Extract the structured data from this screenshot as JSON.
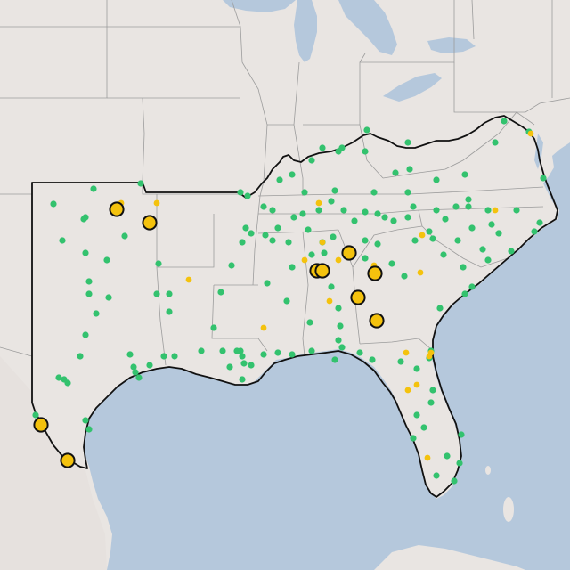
{
  "map": {
    "colors": {
      "water": "#b5c8dc",
      "land": "#e9e5e2",
      "land_outside": "#e6e1de",
      "state_border": "#9c9c9c",
      "region_outline": "#111111",
      "marker_green": "#33c26e",
      "marker_yellow": "#f4c20d",
      "marker_outline": "#111111"
    },
    "marker_types": [
      {
        "name": "green-dot",
        "color": "#33c26e"
      },
      {
        "name": "small-yellow-dot",
        "color": "#f4c20d"
      },
      {
        "name": "large-yellow-circle",
        "color": "#f4c20d",
        "outline": "#111111"
      }
    ]
  }
}
